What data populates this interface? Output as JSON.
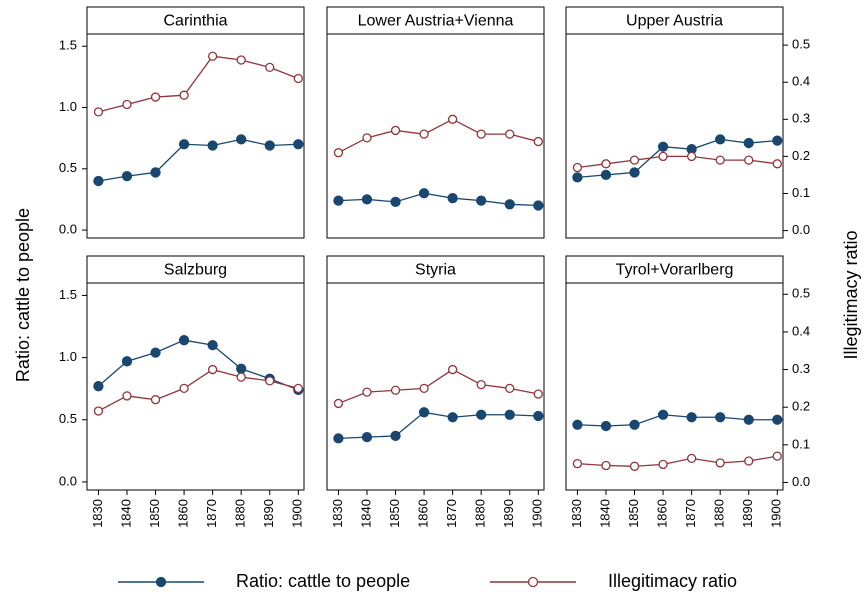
{
  "chart_data": {
    "type": "line",
    "ylabel": "Ratio: cattle to people",
    "y2label": "Illegitimacy ratio",
    "x": [
      1830,
      1840,
      1850,
      1860,
      1870,
      1880,
      1890,
      1900
    ],
    "xlim": [
      1826,
      1902
    ],
    "ylim": [
      -0.065,
      1.6
    ],
    "yticks": [
      {
        "value": 0,
        "label": "0.0"
      },
      {
        "value": 0.5,
        "label": "0.5"
      },
      {
        "value": 1,
        "label": "1.0"
      },
      {
        "value": 1.5,
        "label": "1.5"
      }
    ],
    "y2lim": [
      -0.02,
      0.53
    ],
    "y2ticks": [
      {
        "value": 0,
        "label": "0.0"
      },
      {
        "value": 0.1,
        "label": "0.1"
      },
      {
        "value": 0.2,
        "label": "0.2"
      },
      {
        "value": 0.3,
        "label": "0.3"
      },
      {
        "value": 0.4,
        "label": "0.4"
      },
      {
        "value": 0.5,
        "label": "0.5"
      }
    ],
    "series": [
      {
        "name": "Ratio: cattle to people",
        "color": "#1a476f",
        "marker": "filled"
      },
      {
        "name": "Illegitimacy ratio",
        "color": "#90353b",
        "marker": "hollow",
        "axis": "y2"
      }
    ],
    "panels": [
      {
        "title": "Carinthia",
        "series": [
          {
            "values": [
              0.4,
              0.44,
              0.47,
              0.7,
              0.69,
              0.74,
              0.69,
              0.7
            ]
          },
          {
            "values": [
              0.32,
              0.34,
              0.36,
              0.365,
              0.47,
              0.46,
              0.44,
              0.41
            ]
          }
        ]
      },
      {
        "title": "Lower Austria+Vienna",
        "series": [
          {
            "values": [
              0.24,
              0.25,
              0.23,
              0.3,
              0.26,
              0.24,
              0.21,
              0.2
            ]
          },
          {
            "values": [
              0.21,
              0.25,
              0.27,
              0.26,
              0.3,
              0.26,
              0.26,
              0.24
            ]
          }
        ]
      },
      {
        "title": "Upper Austria",
        "series": [
          {
            "values": [
              0.43,
              0.45,
              0.47,
              0.68,
              0.66,
              0.74,
              0.71,
              0.73
            ]
          },
          {
            "values": [
              0.17,
              0.18,
              0.19,
              0.2,
              0.2,
              0.19,
              0.19,
              0.18
            ]
          }
        ]
      },
      {
        "title": "Salzburg",
        "series": [
          {
            "values": [
              0.77,
              0.97,
              1.04,
              1.14,
              1.1,
              0.91,
              0.83,
              0.74
            ]
          },
          {
            "values": [
              0.19,
              0.23,
              0.22,
              0.25,
              0.3,
              0.28,
              0.27,
              0.25
            ]
          }
        ]
      },
      {
        "title": "Styria",
        "series": [
          {
            "values": [
              0.35,
              0.36,
              0.37,
              0.56,
              0.52,
              0.54,
              0.54,
              0.53
            ]
          },
          {
            "values": [
              0.21,
              0.24,
              0.245,
              0.25,
              0.3,
              0.26,
              0.25,
              0.235
            ]
          }
        ]
      },
      {
        "title": "Tyrol+Vorarlberg",
        "series": [
          {
            "values": [
              0.46,
              0.45,
              0.46,
              0.54,
              0.52,
              0.52,
              0.5,
              0.5
            ]
          },
          {
            "values": [
              0.05,
              0.045,
              0.043,
              0.048,
              0.064,
              0.052,
              0.057,
              0.07
            ]
          }
        ]
      }
    ]
  }
}
